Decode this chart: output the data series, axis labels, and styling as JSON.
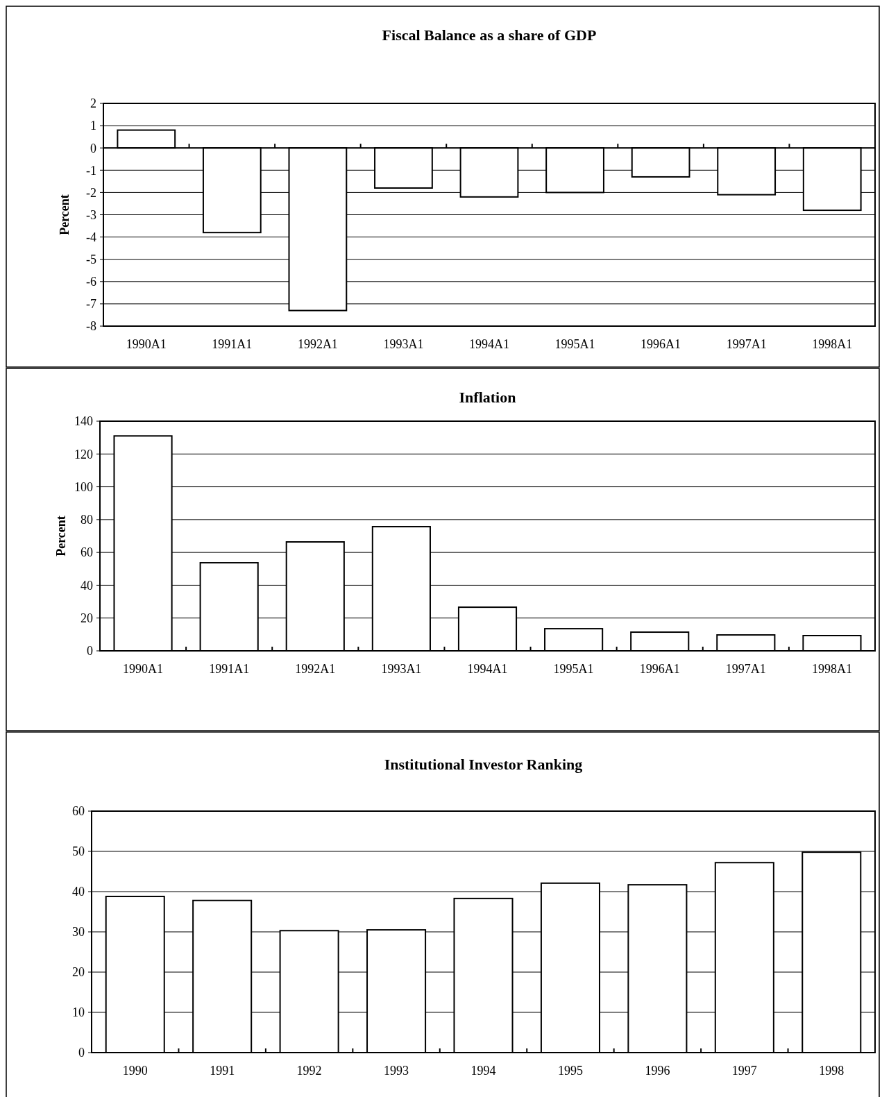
{
  "chart_data": [
    {
      "type": "bar",
      "title": "Fiscal Balance as a share of GDP",
      "ylabel": "Percent",
      "categories": [
        "1990A1",
        "1991A1",
        "1992A1",
        "1993A1",
        "1994A1",
        "1995A1",
        "1996A1",
        "1997A1",
        "1998A1"
      ],
      "values": [
        0.8,
        -3.8,
        -7.3,
        -1.8,
        -2.2,
        -2.0,
        -1.3,
        -2.1,
        -2.8
      ],
      "color": "#ffffff",
      "ylim": [
        -8,
        2
      ],
      "yticks": [
        -8,
        -7,
        -6,
        -5,
        -4,
        -3,
        -2,
        -1,
        0,
        1,
        2
      ],
      "grid": "y"
    },
    {
      "type": "bar",
      "title": "Inflation",
      "ylabel": "Percent",
      "categories": [
        "1990A1",
        "1991A1",
        "1992A1",
        "1993A1",
        "1994A1",
        "1995A1",
        "1996A1",
        "1997A1",
        "1998A1"
      ],
      "values": [
        131,
        53.7,
        66.4,
        75.7,
        26.6,
        13.5,
        11.4,
        9.7,
        9.3
      ],
      "color": "#ffffff",
      "ylim": [
        0,
        140
      ],
      "yticks": [
        0,
        20,
        40,
        60,
        80,
        100,
        120,
        140
      ],
      "grid": "y"
    },
    {
      "type": "bar",
      "title": "Institutional Investor Ranking",
      "categories": [
        "1990",
        "1991",
        "1992",
        "1993",
        "1994",
        "1995",
        "1996",
        "1997",
        "1998"
      ],
      "values": [
        38.8,
        37.8,
        30.3,
        30.5,
        38.3,
        42.1,
        41.7,
        47.2,
        49.8
      ],
      "color": "#ffffff",
      "ylim": [
        0,
        60
      ],
      "yticks": [
        0,
        10,
        20,
        30,
        40,
        50,
        60
      ],
      "grid": "y"
    }
  ]
}
